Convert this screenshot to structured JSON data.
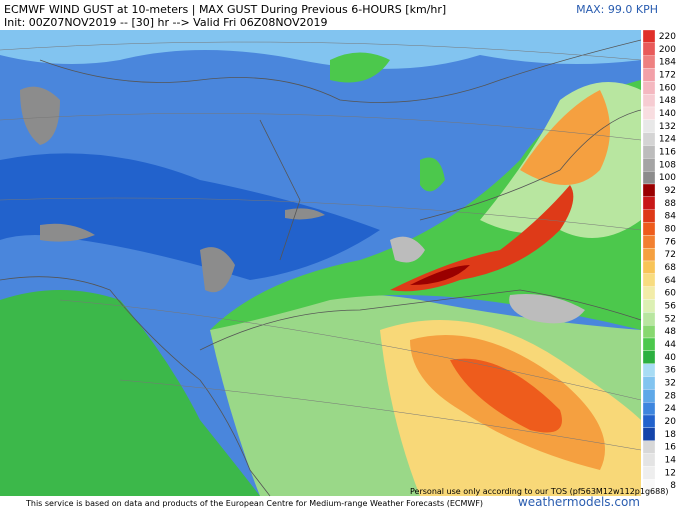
{
  "header": {
    "title": "ECMWF WIND GUST at 10-meters | MAX GUST During Previous 6-HOURS [km/hr]",
    "subtitle": "Init: 00Z07NOV2019 -- [30] hr --> Valid Fri 06Z08NOV2019",
    "max": "MAX: 99.0 KPH"
  },
  "colorbar": {
    "ticks": [
      220,
      200,
      184,
      172,
      160,
      148,
      140,
      132,
      124,
      116,
      108,
      100,
      92,
      88,
      84,
      80,
      76,
      72,
      68,
      64,
      60,
      56,
      52,
      48,
      44,
      40,
      36,
      32,
      28,
      24,
      20,
      18,
      16,
      14,
      12,
      8
    ],
    "colors": [
      "#e0302a",
      "#e85a5a",
      "#ee8080",
      "#f2a0a8",
      "#f4b8c0",
      "#f6ccd2",
      "#f8dde0",
      "#e8e8e8",
      "#d4d4d4",
      "#bcbcbc",
      "#a4a4a4",
      "#8c8c8c",
      "#9a0000",
      "#c81818",
      "#de3a18",
      "#ee5c1c",
      "#f28030",
      "#f5a040",
      "#f8c458",
      "#f8dc80",
      "#f2eca8",
      "#dcf0b4",
      "#b8e6a0",
      "#88d870",
      "#4cc84c",
      "#2cb040",
      "#a8dcf4",
      "#82c4f0",
      "#5ea8e8",
      "#3e86de",
      "#2262cc",
      "#1444aa",
      "#d8d8d8",
      "#e4e4e4",
      "#eeeeee",
      "#f8f8f8"
    ]
  },
  "footer": {
    "credit": "This service is based on data and products of the European Centre for Medium-range Weather Forecasts (ECMWF)",
    "personal": "Personal use only according to our TOS (pf563M12w112p1g688)",
    "brand": "weathermodels.com"
  }
}
